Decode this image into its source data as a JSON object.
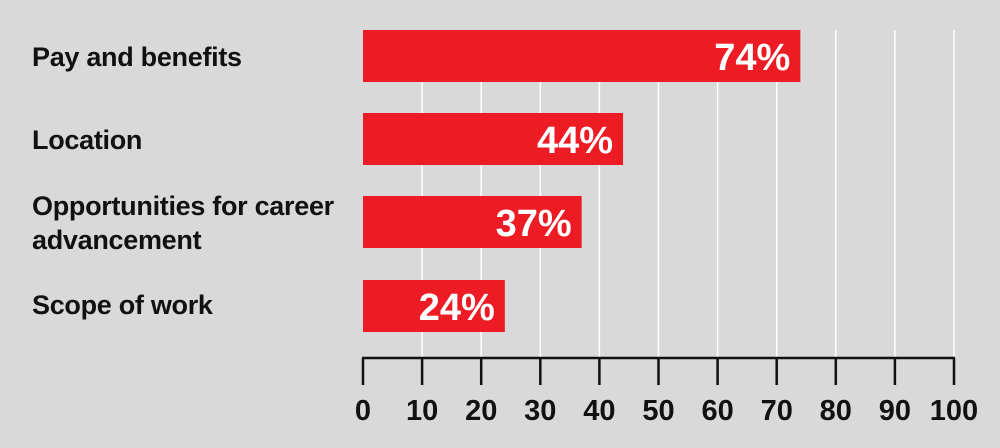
{
  "chart_data": {
    "type": "bar",
    "orientation": "horizontal",
    "categories": [
      "Pay and benefits",
      "Location",
      "Opportunities for career advancement",
      "Scope of work"
    ],
    "values": [
      74,
      44,
      37,
      24
    ],
    "value_labels": [
      "74%",
      "44%",
      "37%",
      "24%"
    ],
    "xlim": [
      0,
      100
    ],
    "xticks": [
      0,
      10,
      20,
      30,
      40,
      50,
      60,
      70,
      80,
      90,
      100
    ],
    "title": "",
    "xlabel": "",
    "ylabel": "",
    "grid": "vertical",
    "legend": "none",
    "colors": {
      "bar": "#ed1c24",
      "background": "#d9d9da",
      "grid": "#ffffff",
      "axis": "#111111",
      "bar_text": "#ffffff"
    }
  },
  "category_lines": [
    [
      "Pay and benefits"
    ],
    [
      "Location"
    ],
    [
      "Opportunities for career",
      "advancement"
    ],
    [
      "Scope of work"
    ]
  ]
}
